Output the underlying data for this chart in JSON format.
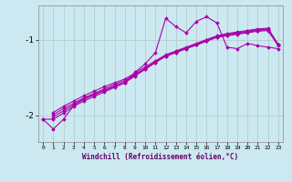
{
  "xlabel": "Windchill (Refroidissement éolien,°C)",
  "bg_color": "#cce8f0",
  "grid_color": "#aacccc",
  "line_color": "#aa00aa",
  "xlim": [
    -0.5,
    23.5
  ],
  "ylim": [
    -2.35,
    -0.55
  ],
  "yticks": [
    -2,
    -1
  ],
  "xticks": [
    0,
    1,
    2,
    3,
    4,
    5,
    6,
    7,
    8,
    9,
    10,
    11,
    12,
    13,
    14,
    15,
    16,
    17,
    18,
    19,
    20,
    21,
    22,
    23
  ],
  "s1_x": [
    0,
    1,
    2,
    3,
    4,
    5,
    6,
    7,
    8,
    9,
    10,
    11,
    12,
    13,
    14,
    15,
    16,
    17,
    18,
    19,
    20,
    21,
    22,
    23
  ],
  "s1_y": [
    -2.05,
    -2.18,
    -2.05,
    -1.87,
    -1.77,
    -1.72,
    -1.67,
    -1.62,
    -1.57,
    -1.43,
    -1.32,
    -1.17,
    -0.72,
    -0.83,
    -0.91,
    -0.76,
    -0.7,
    -0.78,
    -1.1,
    -1.12,
    -1.05,
    -1.08,
    -1.1,
    -1.12
  ],
  "s2_x": [
    0,
    1,
    2,
    3,
    4,
    5,
    6,
    7,
    8,
    9,
    10,
    11,
    12,
    13,
    14,
    15,
    16,
    17,
    18,
    19,
    20,
    21,
    22,
    23
  ],
  "s2_y": [
    -2.05,
    -2.05,
    -1.97,
    -1.88,
    -1.81,
    -1.75,
    -1.69,
    -1.63,
    -1.57,
    -1.48,
    -1.39,
    -1.3,
    -1.22,
    -1.17,
    -1.12,
    -1.07,
    -1.02,
    -0.97,
    -0.95,
    -0.93,
    -0.91,
    -0.89,
    -0.88,
    -1.08
  ],
  "s3_x": [
    1,
    2,
    3,
    4,
    5,
    6,
    7,
    8,
    9,
    10,
    11,
    12,
    13,
    14,
    15,
    16,
    17,
    18,
    19,
    20,
    21,
    22,
    23
  ],
  "s3_y": [
    -2.02,
    -1.94,
    -1.86,
    -1.79,
    -1.73,
    -1.67,
    -1.61,
    -1.56,
    -1.47,
    -1.39,
    -1.3,
    -1.22,
    -1.17,
    -1.12,
    -1.07,
    -1.02,
    -0.97,
    -0.94,
    -0.92,
    -0.9,
    -0.88,
    -0.87,
    -1.07
  ],
  "s4_x": [
    1,
    2,
    3,
    4,
    5,
    6,
    7,
    8,
    9,
    10,
    11,
    12,
    13,
    14,
    15,
    16,
    17,
    18,
    19,
    20,
    21,
    22,
    23
  ],
  "s4_y": [
    -1.99,
    -1.91,
    -1.84,
    -1.77,
    -1.71,
    -1.65,
    -1.59,
    -1.54,
    -1.46,
    -1.38,
    -1.29,
    -1.21,
    -1.16,
    -1.11,
    -1.06,
    -1.01,
    -0.96,
    -0.93,
    -0.91,
    -0.89,
    -0.87,
    -0.86,
    -1.07
  ],
  "s5_x": [
    1,
    2,
    3,
    4,
    5,
    6,
    7,
    8,
    9,
    10,
    11,
    12,
    13,
    14,
    15,
    16,
    17,
    18,
    19,
    20,
    21,
    22,
    23
  ],
  "s5_y": [
    -1.96,
    -1.88,
    -1.81,
    -1.74,
    -1.68,
    -1.62,
    -1.57,
    -1.52,
    -1.44,
    -1.36,
    -1.28,
    -1.2,
    -1.15,
    -1.1,
    -1.05,
    -1.0,
    -0.95,
    -0.92,
    -0.9,
    -0.88,
    -0.86,
    -0.85,
    -1.06
  ]
}
